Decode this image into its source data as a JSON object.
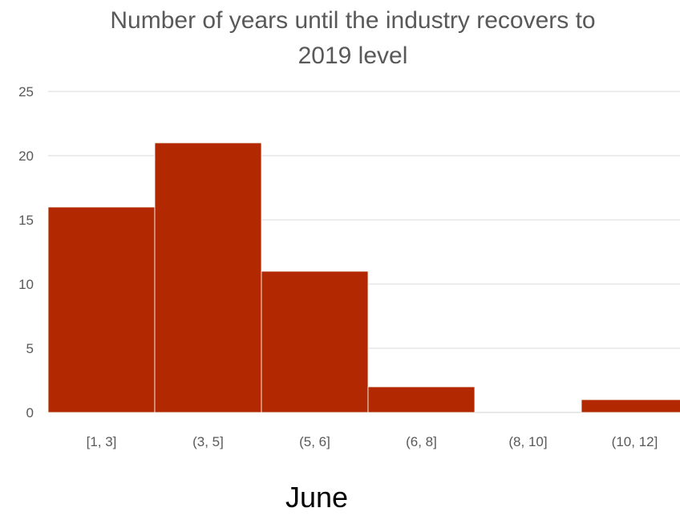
{
  "chart_data": {
    "type": "bar",
    "title_line1": "Number of years until the industry recovers to",
    "title_line2": "2019 level",
    "categories": [
      "[1, 3]",
      "(3, 5]",
      "(5, 6]",
      "(6, 8]",
      "(8, 10]",
      "(10, 12]"
    ],
    "values": [
      16,
      21,
      11,
      2,
      0,
      1
    ],
    "y_ticks": [
      "0",
      "5",
      "10",
      "15",
      "20",
      "25"
    ],
    "ylim": [
      0,
      25
    ],
    "grid": true,
    "legend": "none",
    "bar_color": "#B22800",
    "xlabel": "",
    "ylabel": ""
  },
  "caption": "June"
}
